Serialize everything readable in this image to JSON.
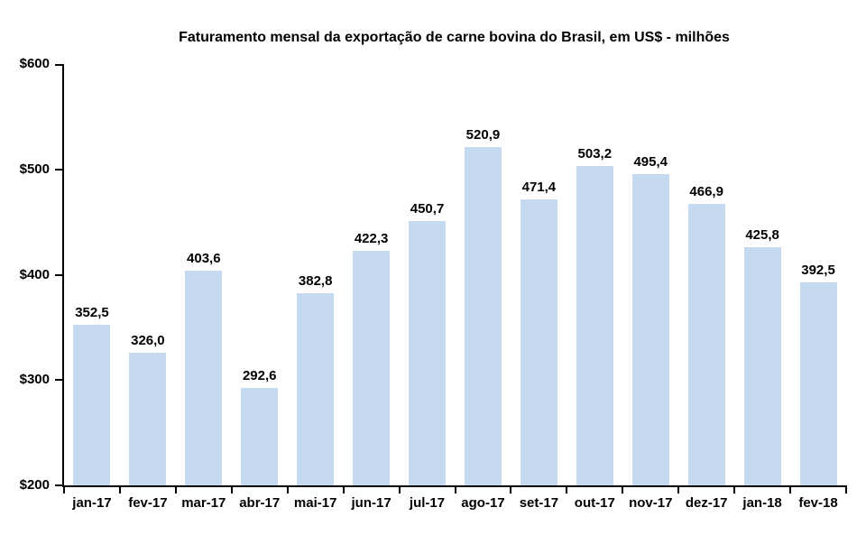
{
  "chart_data": {
    "type": "bar",
    "title": "Faturamento mensal da exportação de carne bovina do Brasil, em US$ - milhões",
    "xlabel": "",
    "ylabel": "",
    "categories": [
      "jan-17",
      "fev-17",
      "mar-17",
      "abr-17",
      "mai-17",
      "jun-17",
      "jul-17",
      "ago-17",
      "set-17",
      "out-17",
      "nov-17",
      "dez-17",
      "jan-18",
      "fev-18"
    ],
    "values": [
      352.5,
      326.0,
      403.6,
      292.6,
      382.8,
      422.3,
      450.7,
      520.9,
      471.4,
      503.2,
      495.4,
      466.9,
      425.8,
      392.5
    ],
    "value_labels": [
      "352,5",
      "326,0",
      "403,6",
      "292,6",
      "382,8",
      "422,3",
      "450,7",
      "520,9",
      "471,4",
      "503,2",
      "495,4",
      "466,9",
      "425,8",
      "392,5"
    ],
    "ylim": [
      200,
      600
    ],
    "yticks": [
      {
        "value": 200,
        "label": "$200"
      },
      {
        "value": 300,
        "label": "$300"
      },
      {
        "value": 400,
        "label": "$400"
      },
      {
        "value": 500,
        "label": "$500"
      },
      {
        "value": 600,
        "label": "$600"
      }
    ],
    "grid": false,
    "legend": "none",
    "bar_color": "#C5D9F1",
    "axis_color": "#000000",
    "text_color": "#000000",
    "background_color": "#FFFFFF"
  }
}
